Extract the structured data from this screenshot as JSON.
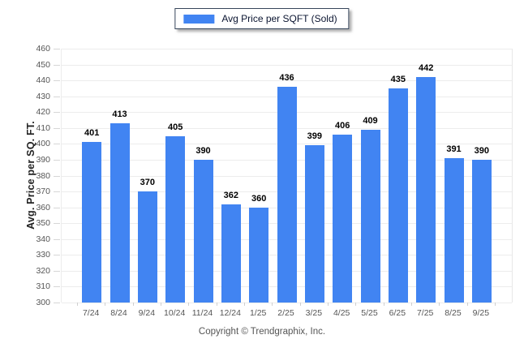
{
  "chart_data": {
    "type": "bar",
    "categories": [
      "7/24",
      "8/24",
      "9/24",
      "10/24",
      "11/24",
      "12/24",
      "1/25",
      "2/25",
      "3/25",
      "4/25",
      "5/25",
      "6/25",
      "7/25",
      "8/25",
      "9/25"
    ],
    "series": [
      {
        "name": "Avg Price per SQFT (Sold)",
        "values": [
          401,
          413,
          370,
          405,
          390,
          362,
          360,
          436,
          399,
          406,
          409,
          435,
          442,
          391,
          390
        ]
      }
    ],
    "title": "",
    "xlabel": "",
    "ylabel": "Avg. Price per SQ. FT.",
    "ylim": [
      300,
      460
    ],
    "ytick_step": 10,
    "grid": "horizontal",
    "legend_position": "top-center",
    "bar_color": "#4184F2",
    "gridline_color": "#ececec",
    "value_label_color": "#000000",
    "tick_label_color": "#555555"
  },
  "footer": {
    "copyright": "Copyright © Trendgraphix, Inc."
  }
}
